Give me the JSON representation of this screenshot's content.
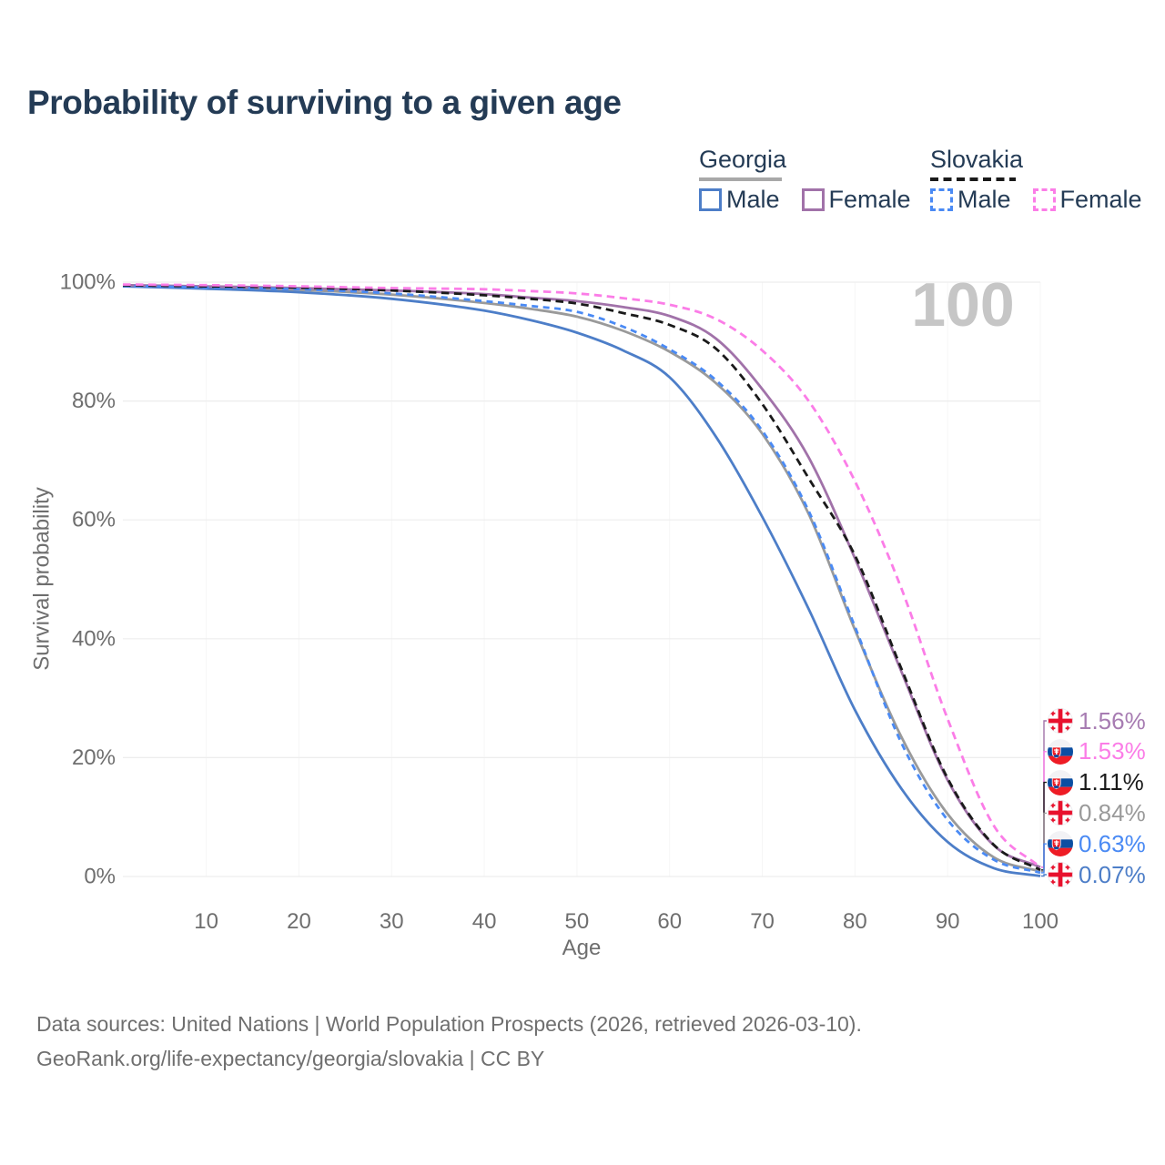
{
  "title": "Probability of surviving to a given age",
  "watermark_age": "100",
  "colors": {
    "title_text": "#243b55",
    "axis_text": "#6e6e6e",
    "gridline": "#ededed",
    "minor_gridline": "#f6f6f6",
    "watermark": "#c6c6c6",
    "footer_text": "#6f6f6f",
    "georgia_underline": "#a8a8a8",
    "slovakia_underline": "#1a1a1a",
    "georgia_male": "#4d7ec8",
    "georgia_female": "#a172a9",
    "georgia_both": "#9a9a9a",
    "slovakia_male": "#4a8af4",
    "slovakia_female": "#fb7de7",
    "slovakia_both": "#1a1a1a"
  },
  "legend": {
    "groups": [
      {
        "label": "Georgia",
        "line_style": "solid",
        "underline_color": "#a8a8a8",
        "items": [
          {
            "label": "Male",
            "color": "#4d7ec8"
          },
          {
            "label": "Female",
            "color": "#a172a9"
          }
        ]
      },
      {
        "label": "Slovakia",
        "line_style": "dashed",
        "underline_color": "#1a1a1a",
        "items": [
          {
            "label": "Male",
            "color": "#4a8af4"
          },
          {
            "label": "Female",
            "color": "#fb7de7"
          }
        ]
      }
    ]
  },
  "chart_data": {
    "type": "line",
    "title": "Probability of surviving to a given age",
    "xlabel": "Age",
    "ylabel": "Survival probability",
    "xlim": [
      1,
      100
    ],
    "ylim": [
      0,
      100
    ],
    "grid": "horizontal-major",
    "legend_position": "top-right",
    "x_ticks": [
      10,
      20,
      30,
      40,
      50,
      60,
      70,
      80,
      90,
      100
    ],
    "y_ticks": [
      {
        "value": 0,
        "label": "0%"
      },
      {
        "value": 20,
        "label": "20%"
      },
      {
        "value": 40,
        "label": "40%"
      },
      {
        "value": 60,
        "label": "60%"
      },
      {
        "value": 80,
        "label": "80%"
      },
      {
        "value": 100,
        "label": "100%"
      }
    ],
    "x": [
      1,
      10,
      20,
      30,
      40,
      45,
      50,
      55,
      60,
      65,
      70,
      75,
      80,
      85,
      90,
      95,
      100
    ],
    "series": [
      {
        "id": "georgia-both",
        "country": "Georgia",
        "group": "Both sexes",
        "line_style": "solid",
        "color": "#9a9a9a",
        "dash": "",
        "flag": "georgia",
        "end_label": "0.84%",
        "label_color": "#9a9a9a",
        "values": [
          99.4,
          99.1,
          98.7,
          97.9,
          96.5,
          95.5,
          94.2,
          91.8,
          88.3,
          83.0,
          74.5,
          61.0,
          41.5,
          23.5,
          10.5,
          3.2,
          0.84
        ]
      },
      {
        "id": "georgia-male",
        "country": "Georgia",
        "group": "Male",
        "line_style": "solid",
        "color": "#4d7ec8",
        "dash": "",
        "flag": "georgia",
        "end_label": "0.07%",
        "label_color": "#4d7ec8",
        "values": [
          99.3,
          98.9,
          98.3,
          97.2,
          95.2,
          93.6,
          91.5,
          88.5,
          84.0,
          74.0,
          60.5,
          45.0,
          28.0,
          14.8,
          5.8,
          1.4,
          0.07
        ]
      },
      {
        "id": "georgia-female",
        "country": "Georgia",
        "group": "Female",
        "line_style": "solid",
        "color": "#a172a9",
        "dash": "",
        "flag": "georgia",
        "end_label": "1.56%",
        "label_color": "#a77cb2",
        "values": [
          99.5,
          99.3,
          99.0,
          98.6,
          98.0,
          97.4,
          96.8,
          95.8,
          94.3,
          90.5,
          82.0,
          70.5,
          53.5,
          34.5,
          16.2,
          5.2,
          1.56
        ]
      },
      {
        "id": "slovakia-male",
        "country": "Slovakia",
        "group": "Male",
        "line_style": "dashed",
        "color": "#4a8af4",
        "dash": "7 5.5",
        "flag": "slovakia",
        "end_label": "0.63%",
        "label_color": "#4a8af4",
        "values": [
          99.4,
          99.1,
          98.8,
          98.1,
          96.8,
          96.0,
          95.0,
          92.5,
          88.7,
          83.5,
          75.0,
          61.5,
          42.0,
          22.5,
          9.5,
          2.8,
          0.63
        ]
      },
      {
        "id": "slovakia-both",
        "country": "Slovakia",
        "group": "Both sexes",
        "line_style": "dashed",
        "color": "#1a1a1a",
        "dash": "8.5 5.5",
        "flag": "slovakia",
        "end_label": "1.11%",
        "label_color": "#1a1a1a",
        "values": [
          99.5,
          99.3,
          99.1,
          98.6,
          97.8,
          97.2,
          96.4,
          94.8,
          92.8,
          88.8,
          79.5,
          67.0,
          54.0,
          35.0,
          16.5,
          5.3,
          1.11
        ]
      },
      {
        "id": "slovakia-female",
        "country": "Slovakia",
        "group": "Female",
        "line_style": "dashed",
        "color": "#fb7de7",
        "dash": "8.5 5.5",
        "flag": "slovakia",
        "end_label": "1.53%",
        "label_color": "#fb7de7",
        "values": [
          99.6,
          99.5,
          99.3,
          99.0,
          98.8,
          98.5,
          98.1,
          97.3,
          96.2,
          93.8,
          88.5,
          80.0,
          66.5,
          48.5,
          26.5,
          8.5,
          1.53
        ]
      }
    ]
  },
  "footer": {
    "line1": "Data sources: United Nations | World Population Prospects (2026, retrieved 2026-03-10).",
    "line2": "GeoRank.org/life-expectancy/georgia/slovakia | CC BY"
  }
}
